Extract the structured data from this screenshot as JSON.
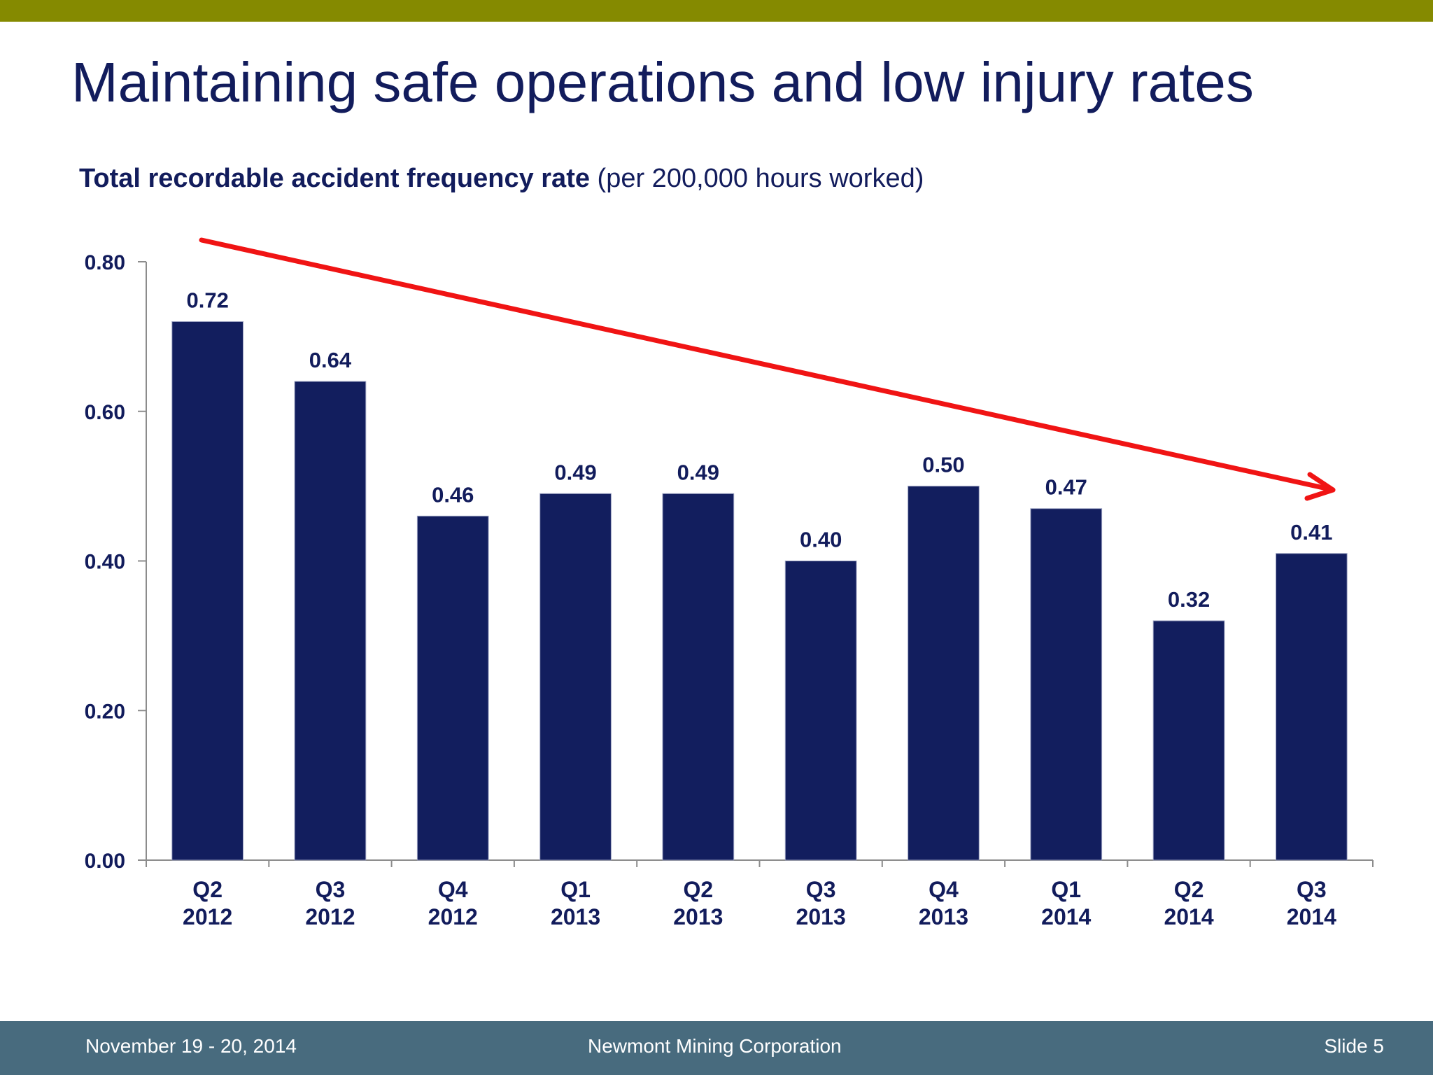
{
  "slide": {
    "title": "Maintaining safe operations and low injury rates",
    "subtitle_bold": "Total recordable accident frequency rate",
    "subtitle_normal": "(per 200,000 hours worked)"
  },
  "footer": {
    "date": "November 19 - 20, 2014",
    "company": "Newmont Mining Corporation",
    "slide_number": "Slide 5"
  },
  "colors": {
    "bar": "#121e5e",
    "trend_arrow": "#f01414",
    "top_bar": "#858a00",
    "footer": "#486b7e",
    "text": "#121c5c"
  },
  "chart_data": {
    "type": "bar",
    "categories": [
      [
        "Q2",
        "2012"
      ],
      [
        "Q3",
        "2012"
      ],
      [
        "Q4",
        "2012"
      ],
      [
        "Q1",
        "2013"
      ],
      [
        "Q2",
        "2013"
      ],
      [
        "Q3",
        "2013"
      ],
      [
        "Q4",
        "2013"
      ],
      [
        "Q1",
        "2014"
      ],
      [
        "Q2",
        "2014"
      ],
      [
        "Q3",
        "2014"
      ]
    ],
    "values": [
      0.72,
      0.64,
      0.46,
      0.49,
      0.49,
      0.4,
      0.5,
      0.47,
      0.32,
      0.41
    ],
    "data_labels": [
      "0.72",
      "0.64",
      "0.46",
      "0.49",
      "0.49",
      "0.40",
      "0.50",
      "0.47",
      "0.32",
      "0.41"
    ],
    "ylim": [
      0,
      0.8
    ],
    "yticks": [
      "0.00",
      "0.20",
      "0.40",
      "0.60",
      "0.80"
    ],
    "grid": false,
    "legend": "none",
    "annotation": "downward trend arrow"
  }
}
